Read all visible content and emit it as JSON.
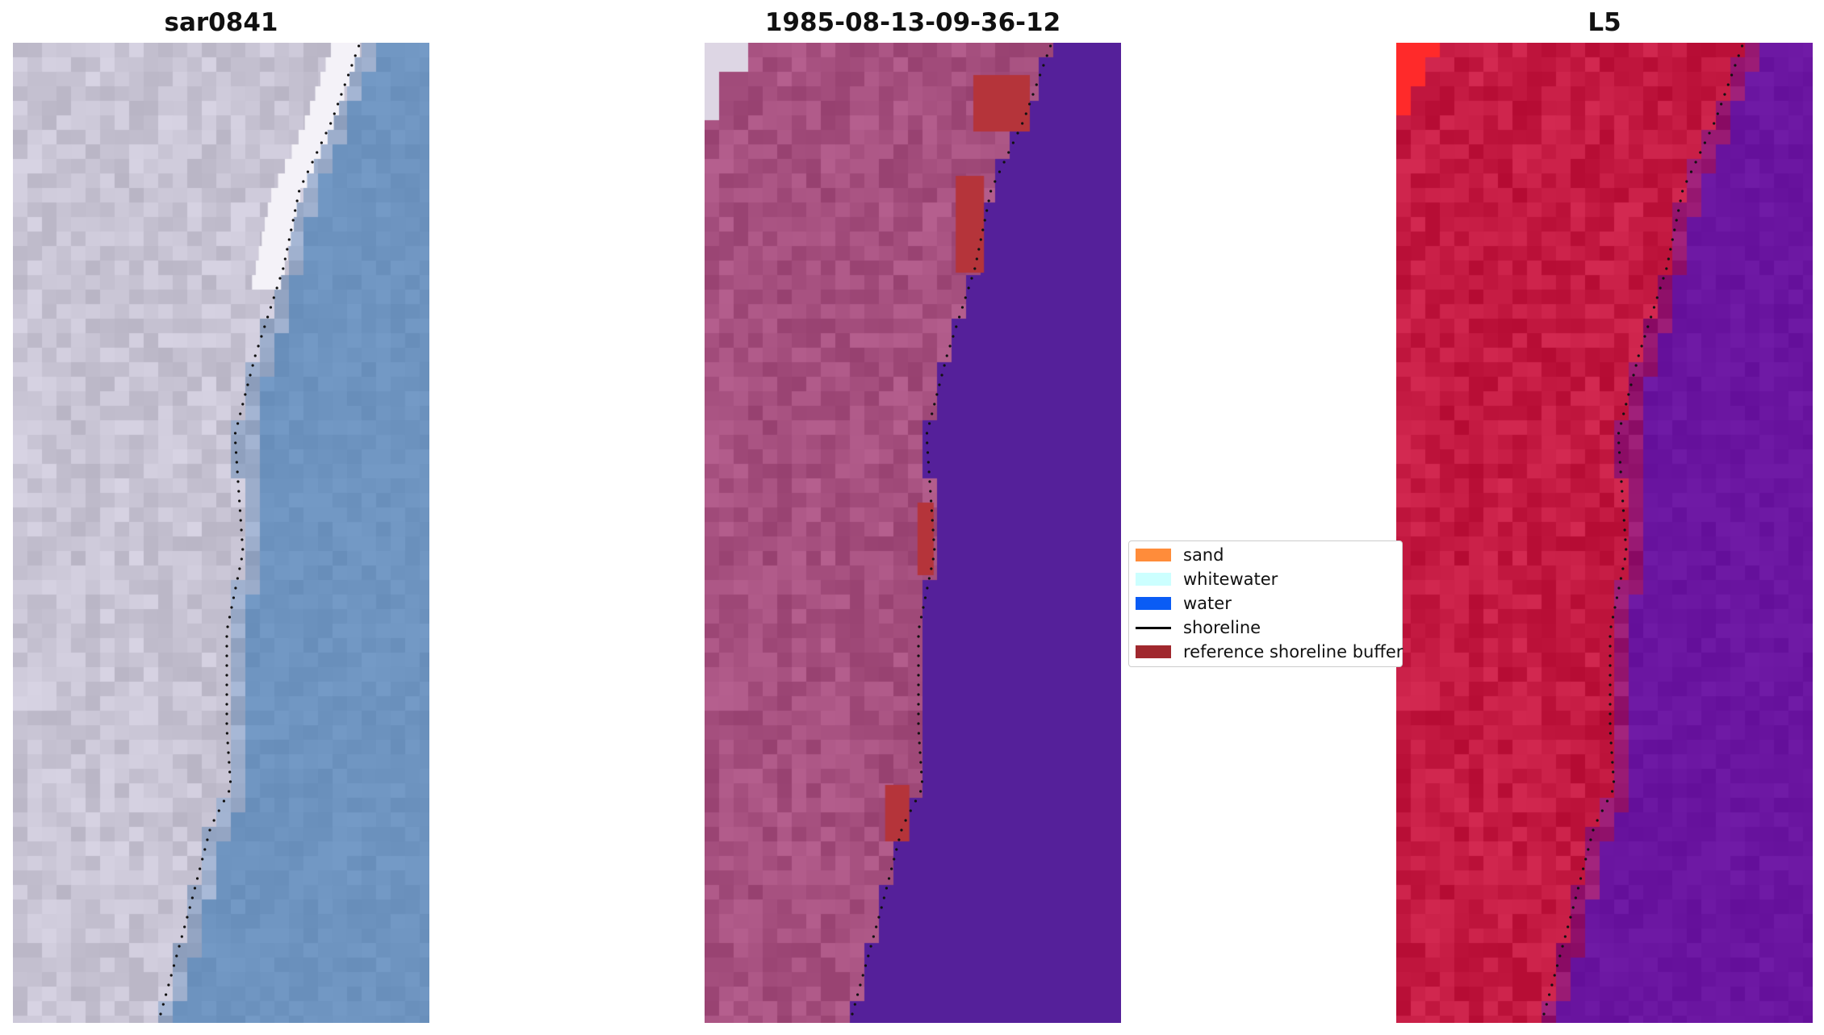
{
  "panels": [
    {
      "title": "sar0841",
      "style": "rgb"
    },
    {
      "title": "1985-08-13-09-36-12",
      "style": "classified"
    },
    {
      "title": "L5",
      "style": "falsecolor"
    }
  ],
  "legend": {
    "items": [
      {
        "label": "sand",
        "color": "#ff8c3a",
        "kind": "patch"
      },
      {
        "label": "whitewater",
        "color": "#ccffff",
        "kind": "patch"
      },
      {
        "label": "water",
        "color": "#0a5cf5",
        "kind": "patch"
      },
      {
        "label": "shoreline",
        "color": "#000000",
        "kind": "line"
      },
      {
        "label": "reference shoreline buffer",
        "color": "#a0282e",
        "kind": "patch"
      }
    ]
  },
  "colors": {
    "rgb_land": "#c8c4d4",
    "rgb_water": "#6e94c0",
    "classified_land": "#a6507f",
    "classified_water": "#55209a",
    "buffer": "#b5343a",
    "falsecolor_land": "#c41a42",
    "falsecolor_water": "#6a15a0",
    "shoreline_points": "#111111"
  }
}
